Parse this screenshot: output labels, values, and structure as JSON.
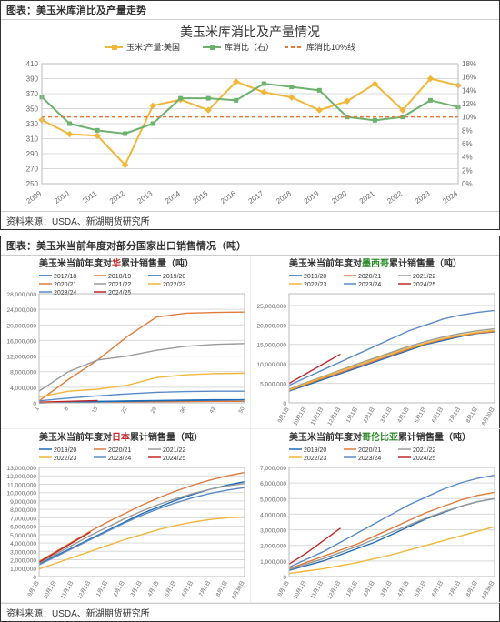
{
  "fig1": {
    "header": "图表：美玉米库消比及产量走势",
    "footer": "资料来源：USDA、新湖期货研究所",
    "title": "美玉米库消比及产量情况",
    "title_fontsize": 14,
    "legend": [
      {
        "label": "玉米:产量:美国",
        "color": "#f0b73a",
        "dash": "0"
      },
      {
        "label": "库消比（右）",
        "color": "#6cb16c",
        "dash": "0"
      },
      {
        "label": "库消比10%线",
        "color": "#e07b3c",
        "dash": "4,3"
      }
    ],
    "x_categories": [
      "2009",
      "2010",
      "2011",
      "2012",
      "2013",
      "2014",
      "2015",
      "2016",
      "2017",
      "2018",
      "2019",
      "2020",
      "2021",
      "2022",
      "2023",
      "2024"
    ],
    "y_left": {
      "min": 250,
      "max": 410,
      "step": 20,
      "label_fontsize": 8,
      "color": "#666"
    },
    "y_right": {
      "min": 0,
      "max": 18,
      "step": 2,
      "suffix": "%",
      "label_fontsize": 8,
      "color": "#666"
    },
    "grid_color": "#d9d9d9",
    "background_color": "#ffffff",
    "series": [
      {
        "name": "production",
        "axis": "left",
        "color": "#f0b73a",
        "width": 2,
        "marker": "diamond",
        "marker_size": 5,
        "values": [
          335,
          316,
          314,
          275,
          354,
          362,
          348,
          386,
          372,
          365,
          348,
          360,
          383,
          348,
          390,
          381
        ]
      },
      {
        "name": "stock_ratio",
        "axis": "right",
        "color": "#6cb16c",
        "width": 2,
        "marker": "square",
        "marker_size": 5,
        "values": [
          13.0,
          9.0,
          8.0,
          7.5,
          9.0,
          12.8,
          12.8,
          12.5,
          15.0,
          14.5,
          14.0,
          10.0,
          9.5,
          10.0,
          12.5,
          11.5
        ]
      },
      {
        "name": "ten_pct_line",
        "axis": "right",
        "color": "#e07b3c",
        "width": 1.5,
        "dash": "4,3",
        "values": [
          10,
          10,
          10,
          10,
          10,
          10,
          10,
          10,
          10,
          10,
          10,
          10,
          10,
          10,
          10,
          10
        ]
      }
    ]
  },
  "fig2": {
    "header": "图表：美玉米当前年度对部分国家出口销售情况（吨）",
    "footer": "资料来源：USDA、新湖期货研究所",
    "colors": {
      "2017/18": "#1f6bb5",
      "2018/19": "#e07b3c",
      "2019/20": "#1f6bb5",
      "2020/21": "#e07b3c",
      "2021/22": "#9a9a9a",
      "2022/23": "#f0b73a",
      "2023/24": "#5a8ac6",
      "2024/25": "#c02828"
    },
    "grid_color": "#d9d9d9",
    "panels": [
      {
        "title": "美玉米当前年度对华累计销售量（吨）",
        "title_highlight": {
          "text": "华",
          "color": "#c02828"
        },
        "legend": [
          "2017/18",
          "2018/19",
          "2019/20",
          "2020/21",
          "2021/22",
          "2022/23",
          "2023/24",
          "2024/25"
        ],
        "x": {
          "min": 1,
          "max": 52,
          "ticks": [
            1,
            8,
            15,
            22,
            29,
            36,
            43,
            50
          ]
        },
        "y": {
          "min": 0,
          "max": 28000000,
          "step": 4000000
        },
        "series": [
          {
            "k": "2017/18",
            "v": [
              0,
              200000,
              400000,
              500000,
              600000,
              700000,
              800000,
              800000
            ]
          },
          {
            "k": "2018/19",
            "v": [
              0,
              100000,
              200000,
              250000,
              300000,
              350000,
              400000,
              400000
            ]
          },
          {
            "k": "2019/20",
            "v": [
              0,
              150000,
              300000,
              400000,
              500000,
              600000,
              700000,
              800000
            ]
          },
          {
            "k": "2020/21",
            "v": [
              500000,
              6000000,
              11000000,
              17000000,
              22000000,
              23000000,
              23200000,
              23300000
            ]
          },
          {
            "k": "2021/22",
            "v": [
              3000000,
              8000000,
              11000000,
              12000000,
              13500000,
              14500000,
              15000000,
              15200000
            ]
          },
          {
            "k": "2022/23",
            "v": [
              1500000,
              3000000,
              3500000,
              4500000,
              6500000,
              7200000,
              7500000,
              7600000
            ]
          },
          {
            "k": "2023/24",
            "v": [
              500000,
              1200000,
              1800000,
              2300000,
              2700000,
              2900000,
              3000000,
              3000000
            ]
          },
          {
            "k": "2024/25",
            "v": [
              200000,
              400000,
              600000,
              null,
              null,
              null,
              null,
              null
            ]
          }
        ]
      },
      {
        "title": "美玉米当前年度对墨西哥累计销售量（吨）",
        "title_highlight": {
          "text": "墨西哥",
          "color": "#2a8a2a"
        },
        "legend": [
          "2019/20",
          "2020/21",
          "2021/22",
          "2022/23",
          "2023/24",
          "2024/25"
        ],
        "x": {
          "type": "weeks",
          "ticks": [
            "9月1日",
            "10月1日",
            "11月1日",
            "12月1日",
            "1月1日",
            "2月1日",
            "3月1日",
            "4月1日",
            "5月1日",
            "6月1日",
            "7月1日",
            "8月1日",
            "8月30日"
          ]
        },
        "y": {
          "min": 0,
          "max": 28000000,
          "step": 5000000
        },
        "series": [
          {
            "k": "2019/20",
            "v": [
              3000000,
              4500000,
              6000000,
              7500000,
              9000000,
              10500000,
              12000000,
              13500000,
              15000000,
              16000000,
              17000000,
              17800000,
              18200000
            ]
          },
          {
            "k": "2020/21",
            "v": [
              3200000,
              4800000,
              6300000,
              7800000,
              9300000,
              10800000,
              12300000,
              13800000,
              15200000,
              16300000,
              17200000,
              17900000,
              18300000
            ]
          },
          {
            "k": "2021/22",
            "v": [
              3500000,
              5200000,
              6800000,
              8400000,
              10000000,
              11500000,
              13000000,
              14500000,
              15800000,
              16900000,
              17800000,
              18500000,
              19000000
            ]
          },
          {
            "k": "2022/23",
            "v": [
              3300000,
              5000000,
              6600000,
              8200000,
              9700000,
              11200000,
              12700000,
              14100000,
              15400000,
              16500000,
              17400000,
              18100000,
              18600000
            ]
          },
          {
            "k": "2023/24",
            "v": [
              4500000,
              6500000,
              8500000,
              10500000,
              12500000,
              14500000,
              16500000,
              18500000,
              20000000,
              21500000,
              22500000,
              23200000,
              23700000
            ]
          },
          {
            "k": "2024/25",
            "v": [
              5000000,
              7500000,
              10000000,
              12500000,
              null,
              null,
              null,
              null,
              null,
              null,
              null,
              null,
              null
            ]
          }
        ]
      },
      {
        "title": "美玉米当前年度对日本累计销售量（吨）",
        "title_highlight": {
          "text": "日本",
          "color": "#c02828"
        },
        "legend": [
          "2019/20",
          "2020/21",
          "2021/22",
          "2022/23",
          "2023/24",
          "2024/25"
        ],
        "x": {
          "type": "weeks",
          "ticks": [
            "9月1日",
            "10月1日",
            "11月1日",
            "12月1日",
            "1月1日",
            "2月1日",
            "3月1日",
            "4月1日",
            "5月1日",
            "6月1日",
            "7月1日",
            "8月1日",
            "8月30日"
          ]
        },
        "y": {
          "min": 0,
          "max": 13000000,
          "step": 1000000
        },
        "series": [
          {
            "k": "2019/20",
            "v": [
              1500000,
              2500000,
              3500000,
              4500000,
              5500000,
              6500000,
              7500000,
              8300000,
              9100000,
              9800000,
              10400000,
              10900000,
              11300000
            ]
          },
          {
            "k": "2020/21",
            "v": [
              1800000,
              3000000,
              4200000,
              5400000,
              6500000,
              7500000,
              8500000,
              9400000,
              10200000,
              10900000,
              11500000,
              12000000,
              12400000
            ]
          },
          {
            "k": "2021/22",
            "v": [
              1600000,
              2700000,
              3800000,
              4900000,
              5900000,
              6900000,
              7800000,
              8600000,
              9300000,
              9900000,
              10400000,
              10800000,
              11100000
            ]
          },
          {
            "k": "2022/23",
            "v": [
              900000,
              1600000,
              2300000,
              3000000,
              3700000,
              4400000,
              5000000,
              5600000,
              6100000,
              6500000,
              6800000,
              7000000,
              7100000
            ]
          },
          {
            "k": "2023/24",
            "v": [
              1400000,
              2400000,
              3400000,
              4400000,
              5400000,
              6400000,
              7300000,
              8100000,
              8800000,
              9400000,
              9900000,
              10300000,
              10600000
            ]
          },
          {
            "k": "2024/25",
            "v": [
              1700000,
              2900000,
              4100000,
              5300000,
              null,
              null,
              null,
              null,
              null,
              null,
              null,
              null,
              null
            ]
          }
        ]
      },
      {
        "title": "美玉米当前年度对哥伦比亚累计销售量（吨）",
        "title_highlight": {
          "text": "哥伦比亚",
          "color": "#2a8a2a"
        },
        "legend": [
          "2019/20",
          "2020/21",
          "2021/22",
          "2022/23",
          "2023/24",
          "2024/25"
        ],
        "x": {
          "type": "weeks",
          "ticks": [
            "9月1日",
            "10月1日",
            "11月1日",
            "12月1日",
            "1月1日",
            "2月1日",
            "3月1日",
            "4月1日",
            "5月1日",
            "6月1日",
            "7月1日",
            "8月1日",
            "8月30日"
          ]
        },
        "y": {
          "min": 0,
          "max": 7000000,
          "step": 1000000
        },
        "series": [
          {
            "k": "2019/20",
            "v": [
              400000,
              700000,
              1000000,
              1400000,
              1800000,
              2200000,
              2700000,
              3200000,
              3700000,
              4100000,
              4500000,
              4800000,
              5000000
            ]
          },
          {
            "k": "2020/21",
            "v": [
              500000,
              900000,
              1300000,
              1700000,
              2100000,
              2600000,
              3100000,
              3600000,
              4100000,
              4500000,
              4900000,
              5200000,
              5400000
            ]
          },
          {
            "k": "2021/22",
            "v": [
              450000,
              800000,
              1150000,
              1550000,
              1950000,
              2400000,
              2850000,
              3300000,
              3750000,
              4150000,
              4500000,
              4800000,
              5000000
            ]
          },
          {
            "k": "2022/23",
            "v": [
              200000,
              350000,
              500000,
              700000,
              900000,
              1150000,
              1400000,
              1700000,
              2000000,
              2300000,
              2600000,
              2900000,
              3200000
            ]
          },
          {
            "k": "2023/24",
            "v": [
              600000,
              1100000,
              1600000,
              2200000,
              2800000,
              3400000,
              4000000,
              4600000,
              5100000,
              5600000,
              6000000,
              6300000,
              6500000
            ]
          },
          {
            "k": "2024/25",
            "v": [
              800000,
              1500000,
              2300000,
              3100000,
              null,
              null,
              null,
              null,
              null,
              null,
              null,
              null,
              null
            ]
          }
        ]
      }
    ]
  }
}
